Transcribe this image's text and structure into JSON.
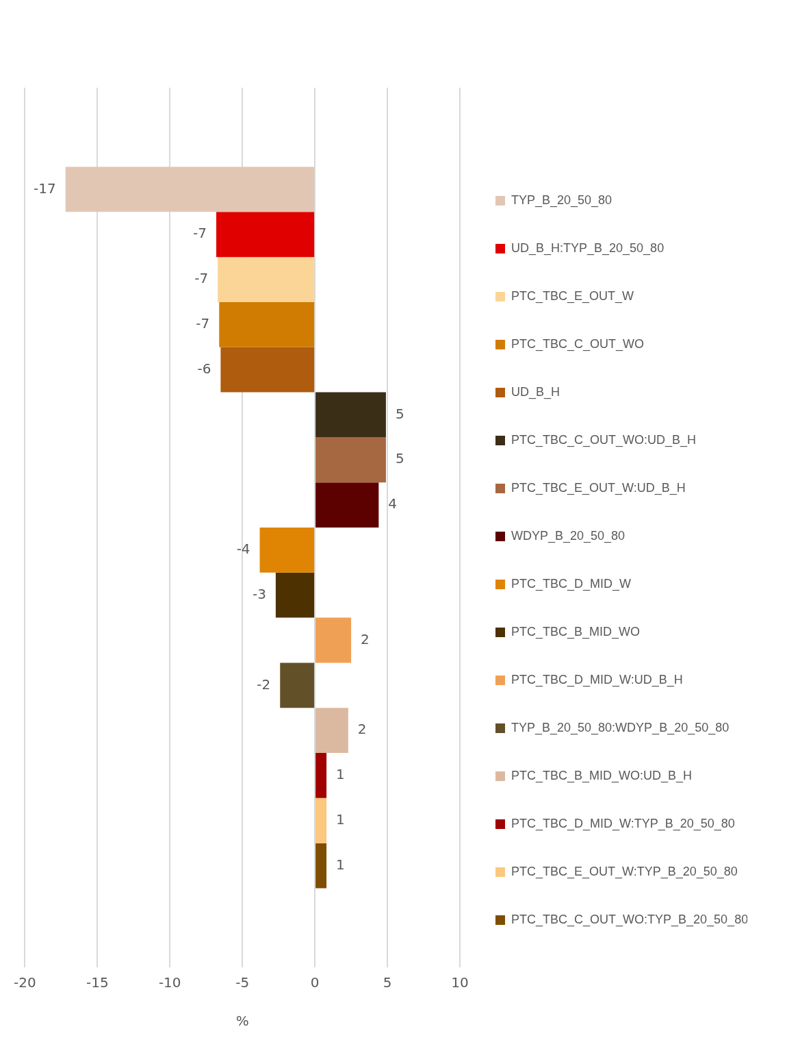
{
  "chart_data": {
    "type": "bar",
    "orientation": "horizontal",
    "categories": [
      null
    ],
    "xlabel": "%",
    "xlim": [
      -20,
      10
    ],
    "xticks": [
      -20,
      -15,
      -10,
      -5,
      0,
      5,
      10
    ],
    "grid": "x",
    "legend": "right",
    "tick_labels": "x",
    "series": [
      {
        "name": "TYP_B_20_50_80",
        "color": "#e2c6b4",
        "values": [
          -17.2
        ],
        "value_labels": [
          "-17"
        ]
      },
      {
        "name": "UD_B_H:TYP_B_20_50_80",
        "color": "#e00000",
        "values": [
          -6.8
        ],
        "value_labels": [
          "-7"
        ]
      },
      {
        "name": "PTC_TBC_E_OUT_W",
        "color": "#fbd598",
        "values": [
          -6.7
        ],
        "value_labels": [
          "-7"
        ]
      },
      {
        "name": "PTC_TBC_C_OUT_WO",
        "color": "#d07c02",
        "values": [
          -6.6
        ],
        "value_labels": [
          "-7"
        ]
      },
      {
        "name": "UD_B_H",
        "color": "#b05c0e",
        "values": [
          -6.5
        ],
        "value_labels": [
          "-6"
        ]
      },
      {
        "name": "PTC_TBC_C_OUT_WO:UD_B_H",
        "color": "#3b2e17",
        "values": [
          4.9
        ],
        "value_labels": [
          "5"
        ]
      },
      {
        "name": "PTC_TBC_E_OUT_W:UD_B_H",
        "color": "#a66841",
        "values": [
          4.9
        ],
        "value_labels": [
          "5"
        ]
      },
      {
        "name": "WDYP_B_20_50_80",
        "color": "#5c0000",
        "values": [
          4.4
        ],
        "value_labels": [
          "4"
        ]
      },
      {
        "name": "PTC_TBC_D_MID_W",
        "color": "#e08404",
        "values": [
          -3.8
        ],
        "value_labels": [
          "-4"
        ]
      },
      {
        "name": "PTC_TBC_B_MID_WO",
        "color": "#4d3100",
        "values": [
          -2.7
        ],
        "value_labels": [
          "-3"
        ]
      },
      {
        "name": "PTC_TBC_D_MID_W:UD_B_H",
        "color": "#f0a055",
        "values": [
          2.5
        ],
        "value_labels": [
          "2"
        ]
      },
      {
        "name": "TYP_B_20_50_80:WDYP_B_20_50_80",
        "color": "#625028",
        "values": [
          -2.4
        ],
        "value_labels": [
          "-2"
        ]
      },
      {
        "name": "PTC_TBC_B_MID_WO:UD_B_H",
        "color": "#dbb9a1",
        "values": [
          2.3
        ],
        "value_labels": [
          "2"
        ]
      },
      {
        "name": "PTC_TBC_D_MID_W:TYP_B_20_50_80",
        "color": "#a00000",
        "values": [
          0.8
        ],
        "value_labels": [
          "1"
        ]
      },
      {
        "name": "PTC_TBC_E_OUT_W:TYP_B_20_50_80",
        "color": "#fbc87e",
        "values": [
          0.8
        ],
        "value_labels": [
          "1"
        ]
      },
      {
        "name": "PTC_TBC_C_OUT_WO:TYP_B_20_50_80",
        "color": "#7f4d00",
        "values": [
          0.8
        ],
        "value_labels": [
          "1"
        ]
      }
    ]
  }
}
